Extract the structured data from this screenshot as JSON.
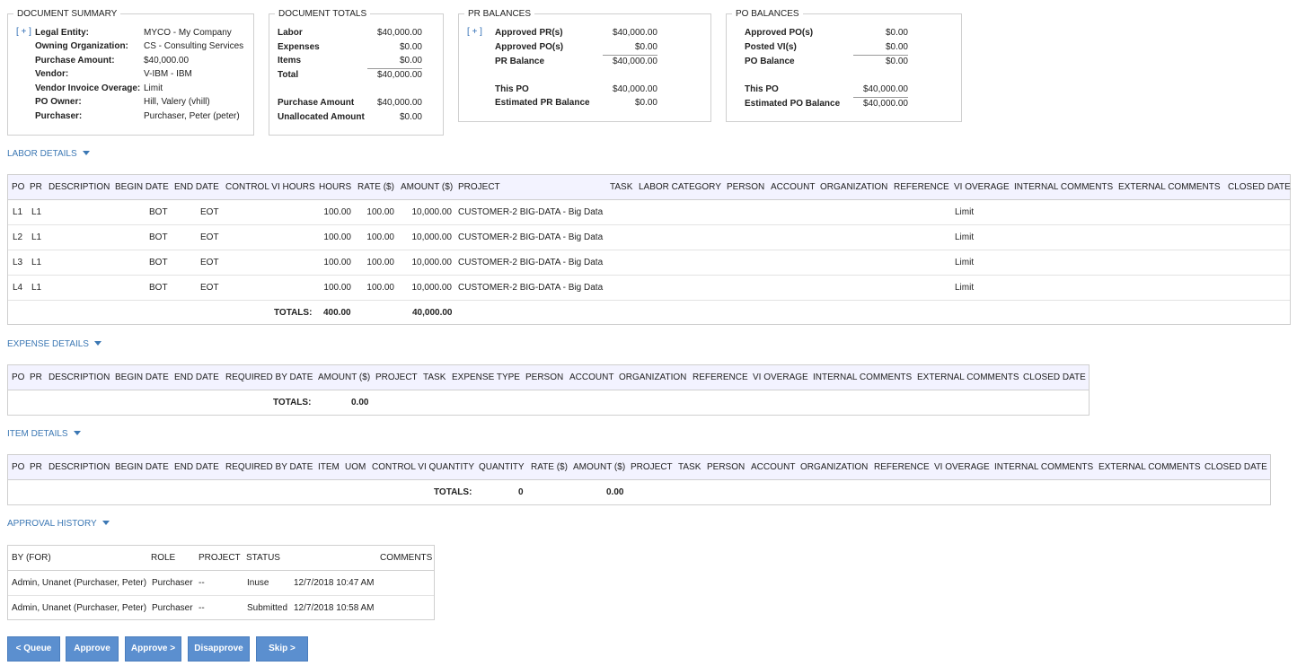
{
  "document_summary": {
    "title": "DOCUMENT SUMMARY",
    "expand": "[ + ]",
    "rows": [
      {
        "label": "Legal Entity:",
        "value": "MYCO - My Company"
      },
      {
        "label": "Owning Organization:",
        "value": "CS - Consulting Services"
      },
      {
        "label": "Purchase Amount:",
        "value": "$40,000.00"
      },
      {
        "label": "Vendor:",
        "value": "V-IBM - IBM"
      },
      {
        "label": "Vendor Invoice Overage:",
        "value": "Limit"
      },
      {
        "label": "PO Owner:",
        "value": "Hill, Valery (vhill)"
      },
      {
        "label": "Purchaser:",
        "value": "Purchaser, Peter (peter)"
      }
    ]
  },
  "document_totals": {
    "title": "DOCUMENT TOTALS",
    "labor": {
      "label": "Labor",
      "value": "$40,000.00"
    },
    "expenses": {
      "label": "Expenses",
      "value": "$0.00"
    },
    "items": {
      "label": "Items",
      "value": "$0.00"
    },
    "total": {
      "label": "Total",
      "value": "$40,000.00"
    },
    "purchase_amount": {
      "label": "Purchase Amount",
      "value": "$40,000.00"
    },
    "unallocated": {
      "label": "Unallocated Amount",
      "value": "$0.00"
    }
  },
  "pr_balances": {
    "title": "PR BALANCES",
    "expand": "[ + ]",
    "approved_pr": {
      "label": "Approved PR(s)",
      "value": "$40,000.00"
    },
    "approved_po": {
      "label": "Approved PO(s)",
      "value": "$0.00"
    },
    "pr_balance": {
      "label": "PR Balance",
      "value": "$40,000.00"
    },
    "this_po": {
      "label": "This PO",
      "value": "$40,000.00"
    },
    "estimated": {
      "label": "Estimated PR Balance",
      "value": "$0.00"
    }
  },
  "po_balances": {
    "title": "PO BALANCES",
    "approved_po": {
      "label": "Approved PO(s)",
      "value": "$0.00"
    },
    "posted_vi": {
      "label": "Posted VI(s)",
      "value": "$0.00"
    },
    "po_balance": {
      "label": "PO Balance",
      "value": "$0.00"
    },
    "this_po": {
      "label": "This PO",
      "value": "$40,000.00"
    },
    "estimated": {
      "label": "Estimated PO Balance",
      "value": "$40,000.00"
    }
  },
  "labor": {
    "header": "LABOR DETAILS",
    "columns": [
      "PO",
      "PR",
      "DESCRIPTION",
      "BEGIN DATE",
      "END DATE",
      "CONTROL VI HOURS",
      "HOURS",
      "RATE ($)",
      "AMOUNT ($)",
      "PROJECT",
      "TASK",
      "LABOR CATEGORY",
      "PERSON",
      "ACCOUNT",
      "ORGANIZATION",
      "REFERENCE",
      "VI OVERAGE",
      "INTERNAL COMMENTS",
      "EXTERNAL COMMENTS",
      "CLOSED DATE"
    ],
    "rows": [
      {
        "po": "L1",
        "pr": "L1",
        "begin": "BOT",
        "end": "EOT",
        "hours": "100.00",
        "rate": "100.00",
        "amount": "10,000.00",
        "project": "CUSTOMER-2 BIG-DATA - Big Data",
        "overage": "Limit"
      },
      {
        "po": "L2",
        "pr": "L1",
        "begin": "BOT",
        "end": "EOT",
        "hours": "100.00",
        "rate": "100.00",
        "amount": "10,000.00",
        "project": "CUSTOMER-2 BIG-DATA - Big Data",
        "overage": "Limit"
      },
      {
        "po": "L3",
        "pr": "L1",
        "begin": "BOT",
        "end": "EOT",
        "hours": "100.00",
        "rate": "100.00",
        "amount": "10,000.00",
        "project": "CUSTOMER-2 BIG-DATA - Big Data",
        "overage": "Limit"
      },
      {
        "po": "L4",
        "pr": "L1",
        "begin": "BOT",
        "end": "EOT",
        "hours": "100.00",
        "rate": "100.00",
        "amount": "10,000.00",
        "project": "CUSTOMER-2 BIG-DATA - Big Data",
        "overage": "Limit"
      }
    ],
    "totals": {
      "label": "TOTALS:",
      "hours": "400.00",
      "amount": "40,000.00"
    }
  },
  "expense": {
    "header": "EXPENSE DETAILS",
    "columns": [
      "PO",
      "PR",
      "DESCRIPTION",
      "BEGIN DATE",
      "END DATE",
      "REQUIRED BY DATE",
      "AMOUNT ($)",
      "PROJECT",
      "TASK",
      "EXPENSE TYPE",
      "PERSON",
      "ACCOUNT",
      "ORGANIZATION",
      "REFERENCE",
      "VI OVERAGE",
      "INTERNAL COMMENTS",
      "EXTERNAL COMMENTS",
      "CLOSED DATE"
    ],
    "totals": {
      "label": "TOTALS:",
      "amount": "0.00"
    }
  },
  "item": {
    "header": "ITEM DETAILS",
    "columns": [
      "PO",
      "PR",
      "DESCRIPTION",
      "BEGIN DATE",
      "END DATE",
      "REQUIRED BY DATE",
      "ITEM",
      "UOM",
      "CONTROL VI QUANTITY",
      "QUANTITY",
      "RATE ($)",
      "AMOUNT ($)",
      "PROJECT",
      "TASK",
      "PERSON",
      "ACCOUNT",
      "ORGANIZATION",
      "REFERENCE",
      "VI OVERAGE",
      "INTERNAL COMMENTS",
      "EXTERNAL COMMENTS",
      "CLOSED DATE"
    ],
    "totals": {
      "label": "TOTALS:",
      "quantity": "0",
      "amount": "0.00"
    }
  },
  "approval": {
    "header": "APPROVAL HISTORY",
    "columns": [
      "BY (FOR)",
      "ROLE",
      "PROJECT",
      "STATUS",
      "",
      "COMMENTS"
    ],
    "rows": [
      {
        "by": "Admin, Unanet (Purchaser, Peter)",
        "role": "Purchaser",
        "project": "--",
        "status": "Inuse",
        "date": "12/7/2018 10:47 AM"
      },
      {
        "by": "Admin, Unanet (Purchaser, Peter)",
        "role": "Purchaser",
        "project": "--",
        "status": "Submitted",
        "date": "12/7/2018 10:58 AM"
      }
    ]
  },
  "buttons": {
    "queue": "< Queue",
    "approve": "Approve",
    "approve_next": "Approve >",
    "disapprove": "Disapprove",
    "skip": "Skip >"
  }
}
